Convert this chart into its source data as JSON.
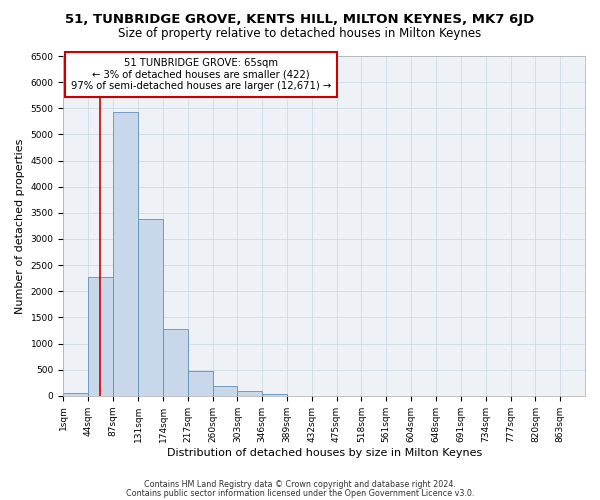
{
  "title": "51, TUNBRIDGE GROVE, KENTS HILL, MILTON KEYNES, MK7 6JD",
  "subtitle": "Size of property relative to detached houses in Milton Keynes",
  "xlabel": "Distribution of detached houses by size in Milton Keynes",
  "ylabel": "Number of detached properties",
  "bar_color": "#c8d8ea",
  "bar_edge_color": "#6090b8",
  "bin_labels": [
    "1sqm",
    "44sqm",
    "87sqm",
    "131sqm",
    "174sqm",
    "217sqm",
    "260sqm",
    "303sqm",
    "346sqm",
    "389sqm",
    "432sqm",
    "475sqm",
    "518sqm",
    "561sqm",
    "604sqm",
    "648sqm",
    "691sqm",
    "734sqm",
    "777sqm",
    "820sqm",
    "863sqm"
  ],
  "bin_left_edges": [
    1,
    44,
    87,
    131,
    174,
    217,
    260,
    303,
    346,
    389,
    432,
    475,
    518,
    561,
    604,
    648,
    691,
    734,
    777,
    820,
    863
  ],
  "bar_heights": [
    50,
    2270,
    5430,
    3380,
    1280,
    480,
    185,
    85,
    30,
    0,
    0,
    0,
    0,
    0,
    0,
    0,
    0,
    0,
    0,
    0,
    0
  ],
  "property_line_x": 65,
  "property_line_color": "#cc0000",
  "ylim": [
    0,
    6500
  ],
  "yticks": [
    0,
    500,
    1000,
    1500,
    2000,
    2500,
    3000,
    3500,
    4000,
    4500,
    5000,
    5500,
    6000,
    6500
  ],
  "annotation_title": "51 TUNBRIDGE GROVE: 65sqm",
  "annotation_line1": "← 3% of detached houses are smaller (422)",
  "annotation_line2": "97% of semi-detached houses are larger (12,671) →",
  "annotation_box_color": "#ffffff",
  "annotation_box_edge": "#cc0000",
  "footer1": "Contains HM Land Registry data © Crown copyright and database right 2024.",
  "footer2": "Contains public sector information licensed under the Open Government Licence v3.0.",
  "background_color": "#ffffff",
  "plot_bg_color": "#eef2f6",
  "grid_color": "#c8d4de",
  "title_fontsize": 9.5,
  "subtitle_fontsize": 8.5,
  "axis_label_fontsize": 8,
  "tick_fontsize": 6.5,
  "footer_fontsize": 5.8
}
